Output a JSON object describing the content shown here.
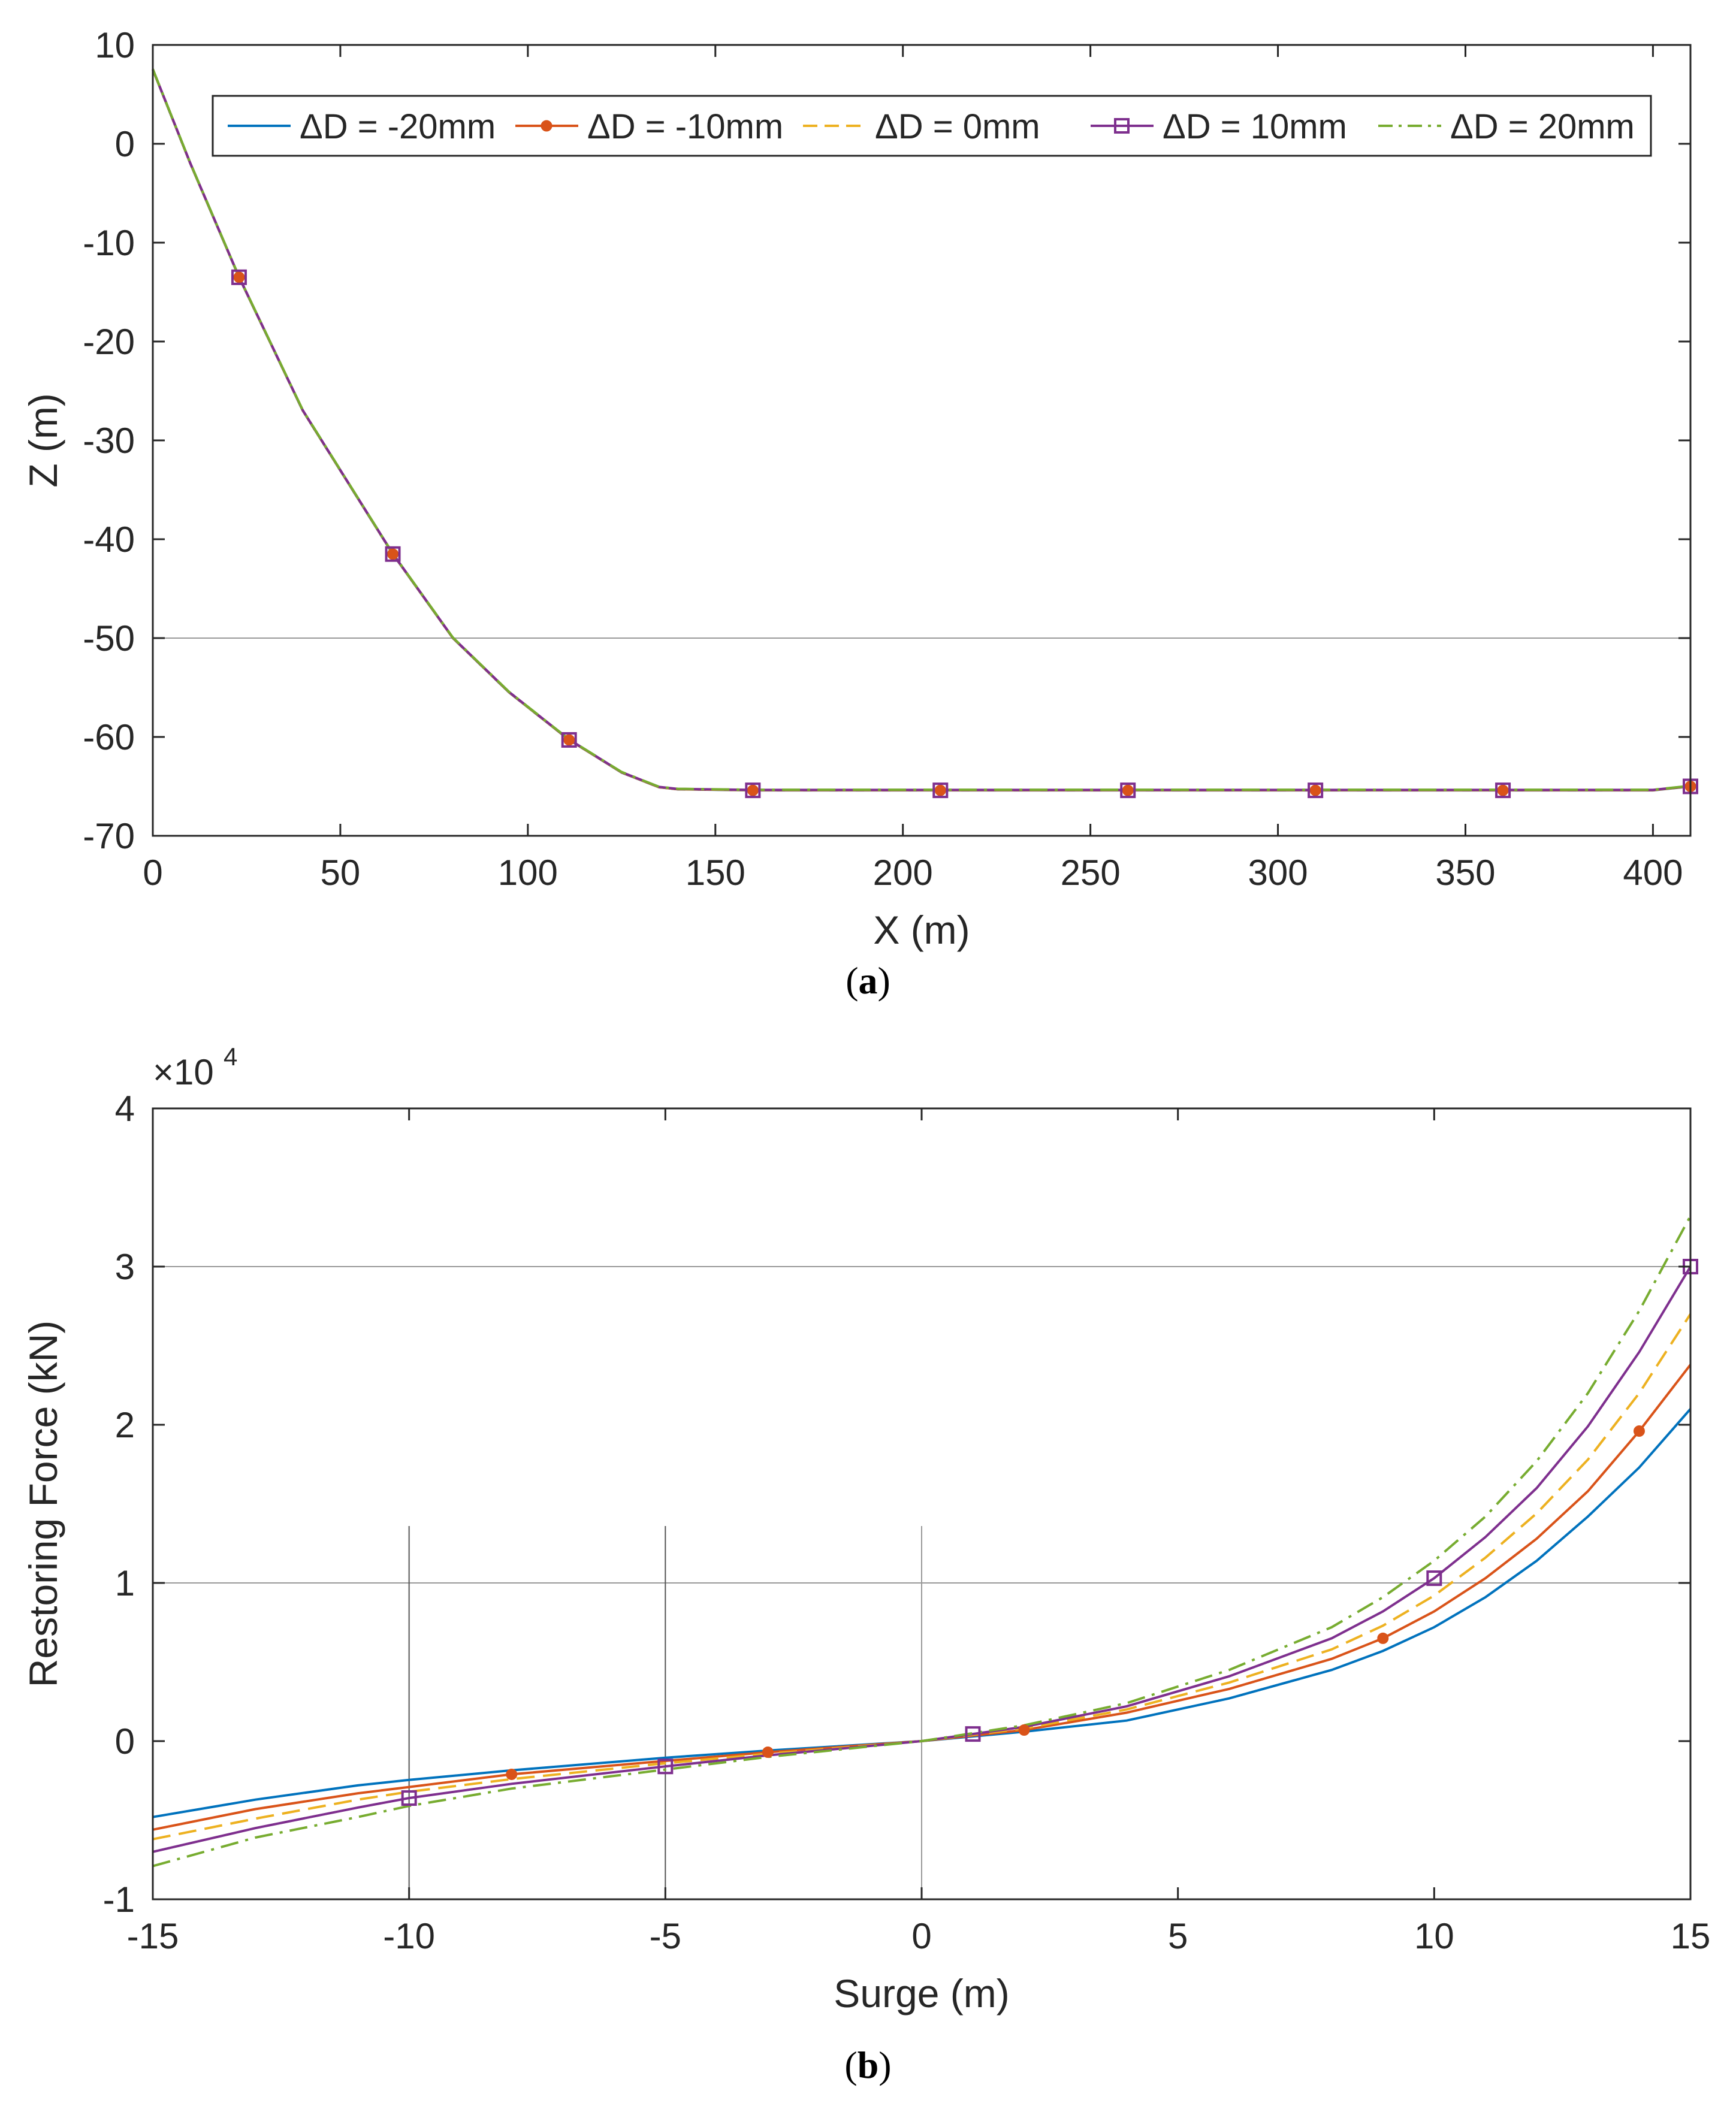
{
  "captions": {
    "a": {
      "open": "(",
      "letter": "a",
      "close": ")"
    },
    "b": {
      "open": "(",
      "letter": "b",
      "close": ")"
    }
  },
  "colors": {
    "minus20": "#0072BD",
    "minus10": "#D95319",
    "zero": "#EDB120",
    "plus10": "#7E2F8E",
    "plus20": "#77AC30",
    "axis": "#262626",
    "grid_line": "#999999"
  },
  "chart_data": [
    {
      "id": "a",
      "type": "line",
      "title": "",
      "xlabel": "X (m)",
      "ylabel": "Z (m)",
      "xlim": [
        0,
        410
      ],
      "ylim": [
        -70,
        10
      ],
      "xticks": [
        0,
        50,
        100,
        150,
        200,
        250,
        300,
        350,
        400
      ],
      "yticks": [
        10,
        0,
        -10,
        -20,
        -30,
        -40,
        -50,
        -60,
        -70
      ],
      "reference_lines_y": [
        -50
      ],
      "legend_location": "top (inside, horizontal)",
      "profile": {
        "x": [
          0,
          10,
          23,
          40,
          64,
          80,
          95,
          111,
          125,
          135,
          140,
          160,
          210,
          260,
          310,
          360,
          400,
          410
        ],
        "z": [
          7.5,
          -2,
          -13.5,
          -27,
          -41.5,
          -50,
          -55.5,
          -60.3,
          -63.6,
          -65.1,
          -65.3,
          -65.4,
          -65.4,
          -65.4,
          -65.4,
          -65.4,
          -65.4,
          -65.0
        ]
      },
      "marker_x": [
        23,
        64,
        111,
        160,
        210,
        260,
        310,
        360,
        410
      ],
      "marker_z": [
        -13.5,
        -41.5,
        -60.3,
        -65.4,
        -65.4,
        -65.4,
        -65.4,
        -65.4,
        -65.0
      ],
      "series": [
        {
          "name": "ΔD = -20mm",
          "style": "solid",
          "marker": "none"
        },
        {
          "name": "ΔD = -10mm",
          "style": "solid",
          "marker": "dot"
        },
        {
          "name": "ΔD = 0mm",
          "style": "dashed",
          "marker": "none"
        },
        {
          "name": "ΔD = 10mm",
          "style": "solid",
          "marker": "square"
        },
        {
          "name": "ΔD = 20mm",
          "style": "dashdot",
          "marker": "none"
        }
      ]
    },
    {
      "id": "b",
      "type": "line",
      "title": "",
      "xlabel": "Surge (m)",
      "ylabel": "Restoring Force (kN)",
      "y_exponent_base": "×10",
      "y_exponent_power": "4",
      "xlim": [
        -15,
        15
      ],
      "ylim": [
        -1,
        4
      ],
      "xticks": [
        -15,
        -10,
        -5,
        0,
        5,
        10,
        15
      ],
      "yticks": [
        4,
        3,
        2,
        1,
        0,
        -1
      ],
      "reference_lines_y": [
        3,
        1
      ],
      "reference_lines_x": [
        -10,
        -5,
        0
      ],
      "reference_line_top": 1.36,
      "x": [
        -15,
        -13,
        -11,
        -10,
        -8,
        -5,
        -3,
        0,
        1,
        2,
        4,
        6,
        8,
        9,
        10,
        11,
        12,
        13,
        14,
        15
      ],
      "series": [
        {
          "name": "ΔD = -20mm",
          "style": "solid",
          "marker": "none",
          "values": [
            -0.48,
            -0.37,
            -0.28,
            -0.245,
            -0.185,
            -0.105,
            -0.06,
            0.0,
            0.03,
            0.06,
            0.13,
            0.27,
            0.45,
            0.57,
            0.72,
            0.91,
            1.14,
            1.42,
            1.73,
            2.1
          ]
        },
        {
          "name": "ΔD = -10mm",
          "style": "solid",
          "marker": "dot",
          "values": [
            -0.56,
            -0.43,
            -0.33,
            -0.29,
            -0.21,
            -0.125,
            -0.07,
            0.0,
            0.035,
            0.07,
            0.18,
            0.33,
            0.52,
            0.65,
            0.82,
            1.03,
            1.28,
            1.58,
            1.96,
            2.38
          ]
        },
        {
          "name": "ΔD = 0mm",
          "style": "dashed",
          "marker": "none",
          "values": [
            -0.62,
            -0.49,
            -0.37,
            -0.32,
            -0.24,
            -0.14,
            -0.08,
            0.0,
            0.04,
            0.08,
            0.2,
            0.37,
            0.58,
            0.73,
            0.92,
            1.16,
            1.44,
            1.78,
            2.2,
            2.7
          ]
        },
        {
          "name": "ΔD = 10mm",
          "style": "solid",
          "marker": "square",
          "values": [
            -0.7,
            -0.55,
            -0.42,
            -0.36,
            -0.27,
            -0.16,
            -0.09,
            0.0,
            0.045,
            0.09,
            0.22,
            0.41,
            0.65,
            0.82,
            1.03,
            1.29,
            1.6,
            1.99,
            2.46,
            3.0
          ]
        },
        {
          "name": "ΔD = 20mm",
          "style": "dashdot",
          "marker": "none",
          "values": [
            -0.79,
            -0.61,
            -0.48,
            -0.41,
            -0.3,
            -0.18,
            -0.1,
            0.0,
            0.05,
            0.1,
            0.24,
            0.45,
            0.72,
            0.91,
            1.14,
            1.42,
            1.77,
            2.2,
            2.72,
            3.32
          ]
        }
      ],
      "markers": {
        "ΔD = -10mm": [
          -8,
          -3,
          2,
          9,
          14
        ],
        "ΔD = 10mm": [
          -10,
          -5,
          1,
          10,
          15
        ]
      }
    }
  ]
}
